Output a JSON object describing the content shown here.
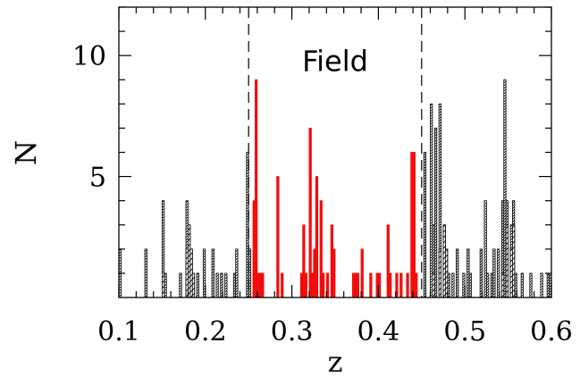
{
  "chart_data": {
    "type": "bar",
    "subtype": "histogram",
    "xlabel": "z",
    "ylabel": "N",
    "xlim": [
      0.1,
      0.6
    ],
    "ylim": [
      0,
      12
    ],
    "bin_width": 0.0025,
    "xticks_major": [
      0.1,
      0.2,
      0.3,
      0.4,
      0.5,
      0.6
    ],
    "xtick_labels": [
      "0.1",
      "0.2",
      "0.3",
      "0.4",
      "0.5",
      "0.6"
    ],
    "xticks_minor_step": 0.02,
    "yticks_major": [
      5,
      10
    ],
    "ytick_labels": [
      "5",
      "10"
    ],
    "yticks_minor_step": 1,
    "annotations": [
      {
        "text": "Field",
        "x": 0.35,
        "y": 9.8
      }
    ],
    "reference_lines": [
      {
        "x": 0.25,
        "style": "dashed"
      },
      {
        "x": 0.45,
        "style": "dashed"
      }
    ],
    "series": [
      {
        "style": "outline-dense-hatch",
        "color": "#000000",
        "fill": "#ffffff",
        "bins": [
          [
            0.1,
            2
          ],
          [
            0.13,
            2
          ],
          [
            0.15,
            4
          ],
          [
            0.1525,
            1
          ],
          [
            0.17,
            1
          ],
          [
            0.1775,
            4
          ],
          [
            0.18,
            3
          ],
          [
            0.1825,
            2
          ],
          [
            0.185,
            1
          ],
          [
            0.19,
            1
          ],
          [
            0.1975,
            2
          ],
          [
            0.2075,
            2
          ],
          [
            0.2125,
            1
          ],
          [
            0.2175,
            1
          ],
          [
            0.2225,
            1
          ],
          [
            0.2325,
            1
          ],
          [
            0.235,
            2
          ],
          [
            0.2475,
            6
          ],
          [
            0.25,
            2
          ],
          [
            0.255,
            1
          ],
          [
            0.4525,
            6
          ],
          [
            0.46,
            8
          ],
          [
            0.4625,
            3
          ],
          [
            0.465,
            7
          ],
          [
            0.47,
            8
          ],
          [
            0.475,
            3
          ],
          [
            0.4775,
            2
          ],
          [
            0.48,
            1
          ],
          [
            0.485,
            1
          ],
          [
            0.49,
            2
          ],
          [
            0.4975,
            1
          ],
          [
            0.5025,
            2
          ],
          [
            0.505,
            1
          ],
          [
            0.5175,
            2
          ],
          [
            0.5225,
            4
          ],
          [
            0.525,
            1
          ],
          [
            0.53,
            1
          ],
          [
            0.5325,
            2
          ],
          [
            0.5375,
            2
          ],
          [
            0.5425,
            4
          ],
          [
            0.545,
            9
          ],
          [
            0.5475,
            4
          ],
          [
            0.5525,
            3
          ],
          [
            0.555,
            4
          ],
          [
            0.5575,
            1
          ],
          [
            0.565,
            1
          ],
          [
            0.575,
            1
          ],
          [
            0.5875,
            1
          ],
          [
            0.595,
            1
          ],
          [
            0.5975,
            1
          ]
        ]
      },
      {
        "style": "sparse-hatch",
        "color": "#000000",
        "fill": "#ffffff",
        "bins": [
          [
            0.15,
            1
          ],
          [
            0.1775,
            2
          ],
          [
            0.18,
            3
          ],
          [
            0.1825,
            2
          ],
          [
            0.185,
            1
          ],
          [
            0.4625,
            1
          ],
          [
            0.47,
            2
          ],
          [
            0.475,
            3
          ],
          [
            0.4775,
            2
          ],
          [
            0.5425,
            1
          ],
          [
            0.5475,
            3
          ],
          [
            0.5525,
            2
          ],
          [
            0.555,
            3
          ]
        ]
      },
      {
        "style": "red-filled",
        "color": "#ff0000",
        "fill": "#ff1a1a",
        "bins": [
          [
            0.255,
            4
          ],
          [
            0.2575,
            9
          ],
          [
            0.26,
            1
          ],
          [
            0.2625,
            1
          ],
          [
            0.265,
            1
          ],
          [
            0.2825,
            5
          ],
          [
            0.2875,
            1
          ],
          [
            0.31,
            1
          ],
          [
            0.3125,
            3
          ],
          [
            0.315,
            1
          ],
          [
            0.32,
            7
          ],
          [
            0.3225,
            1
          ],
          [
            0.325,
            2
          ],
          [
            0.3275,
            5
          ],
          [
            0.3325,
            4
          ],
          [
            0.335,
            1
          ],
          [
            0.34,
            1
          ],
          [
            0.345,
            3
          ],
          [
            0.3475,
            2
          ],
          [
            0.37,
            1
          ],
          [
            0.3725,
            1
          ],
          [
            0.375,
            1
          ],
          [
            0.38,
            2
          ],
          [
            0.39,
            1
          ],
          [
            0.3975,
            1
          ],
          [
            0.4,
            1
          ],
          [
            0.41,
            3
          ],
          [
            0.4125,
            1
          ],
          [
            0.42,
            1
          ],
          [
            0.425,
            1
          ],
          [
            0.4325,
            1
          ],
          [
            0.4375,
            6
          ],
          [
            0.44,
            6
          ],
          [
            0.4425,
            1
          ]
        ]
      }
    ]
  }
}
